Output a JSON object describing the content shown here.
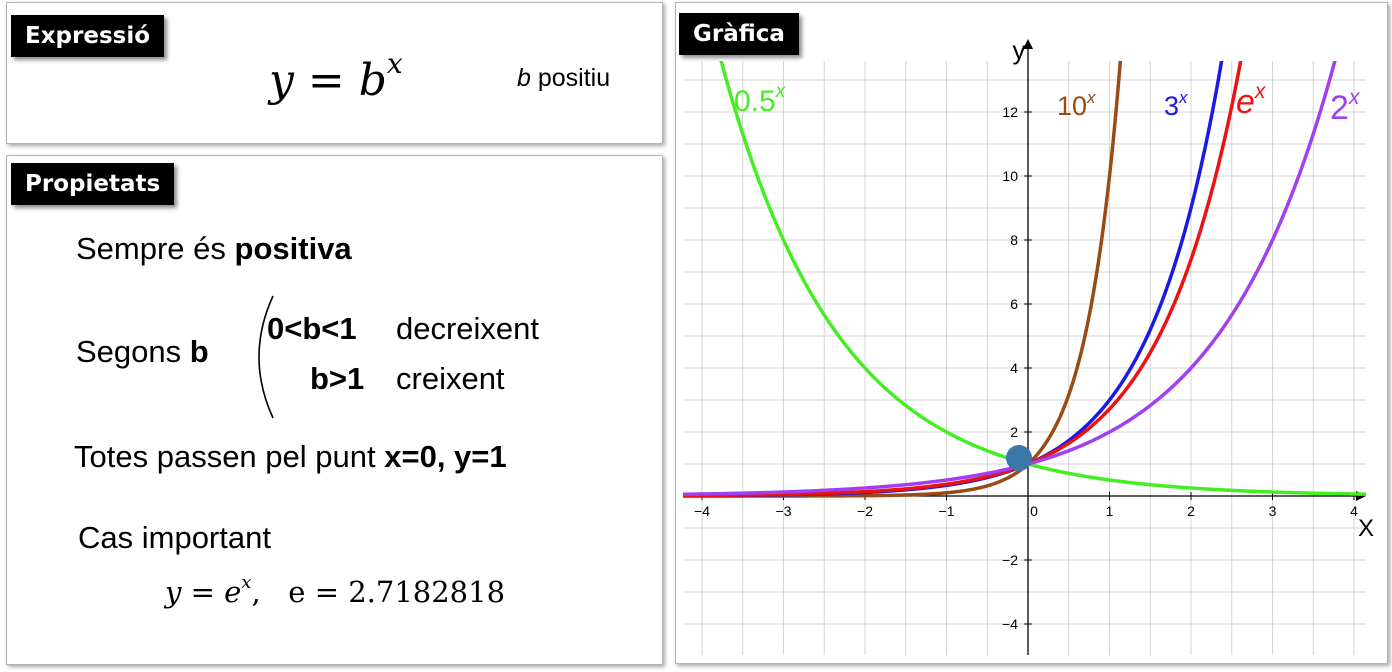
{
  "expression": {
    "tag": "Expressió",
    "formula_base": "y = b",
    "formula_exp": "x",
    "note_var": "b",
    "note_text": "positiu"
  },
  "properties": {
    "tag": "Propietats",
    "always_prefix": "Sempre és",
    "always_bold": "positiva",
    "depends_prefix": "Segons",
    "depends_bold": "b",
    "case1_cond": "0<b<1",
    "case1_text": "decreixent",
    "case2_cond": "b>1",
    "case2_text": "creixent",
    "point_prefix": "Totes passen pel punt",
    "point_bold": "x=0, y=1",
    "important_title": "Cas important",
    "important_left": "y = e",
    "important_sup": "x",
    "important_right": ",   e = 2.7182818"
  },
  "graph": {
    "tag": "Gràfica",
    "colors": {
      "grid": "#d4d4d4",
      "axis": "#000000",
      "point": "#3b77a8"
    }
  },
  "chart_data": {
    "type": "line",
    "title": "Gràfica",
    "xlabel": "X",
    "ylabel": "y",
    "xlim": [
      -4.15,
      4.2
    ],
    "ylim": [
      -4.3,
      13.5
    ],
    "x_ticks": [
      -4,
      -3,
      -2,
      -1,
      0,
      1,
      2,
      3,
      4
    ],
    "x_tick_labels": [
      "−4",
      "−3",
      "−2",
      "−1",
      "0",
      "1",
      "2",
      "3",
      "4"
    ],
    "y_ticks": [
      -4,
      -2,
      2,
      4,
      6,
      8,
      10,
      12
    ],
    "y_tick_labels": [
      "−4",
      "−2",
      "2",
      "4",
      "6",
      "8",
      "10",
      "12"
    ],
    "grid": true,
    "highlight_point": {
      "x": 0,
      "y": 1
    },
    "series": [
      {
        "name": "0.5",
        "base": 0.5,
        "color": "#44ee22"
      },
      {
        "name": "10",
        "base": 10,
        "color": "#9a4a14"
      },
      {
        "name": "3",
        "base": 3,
        "color": "#1a1ae6"
      },
      {
        "name": "e",
        "base": 2.7182818,
        "color": "#ee1111"
      },
      {
        "name": "2",
        "base": 2,
        "color": "#a040f0"
      }
    ],
    "series_label_exponent": "x"
  }
}
